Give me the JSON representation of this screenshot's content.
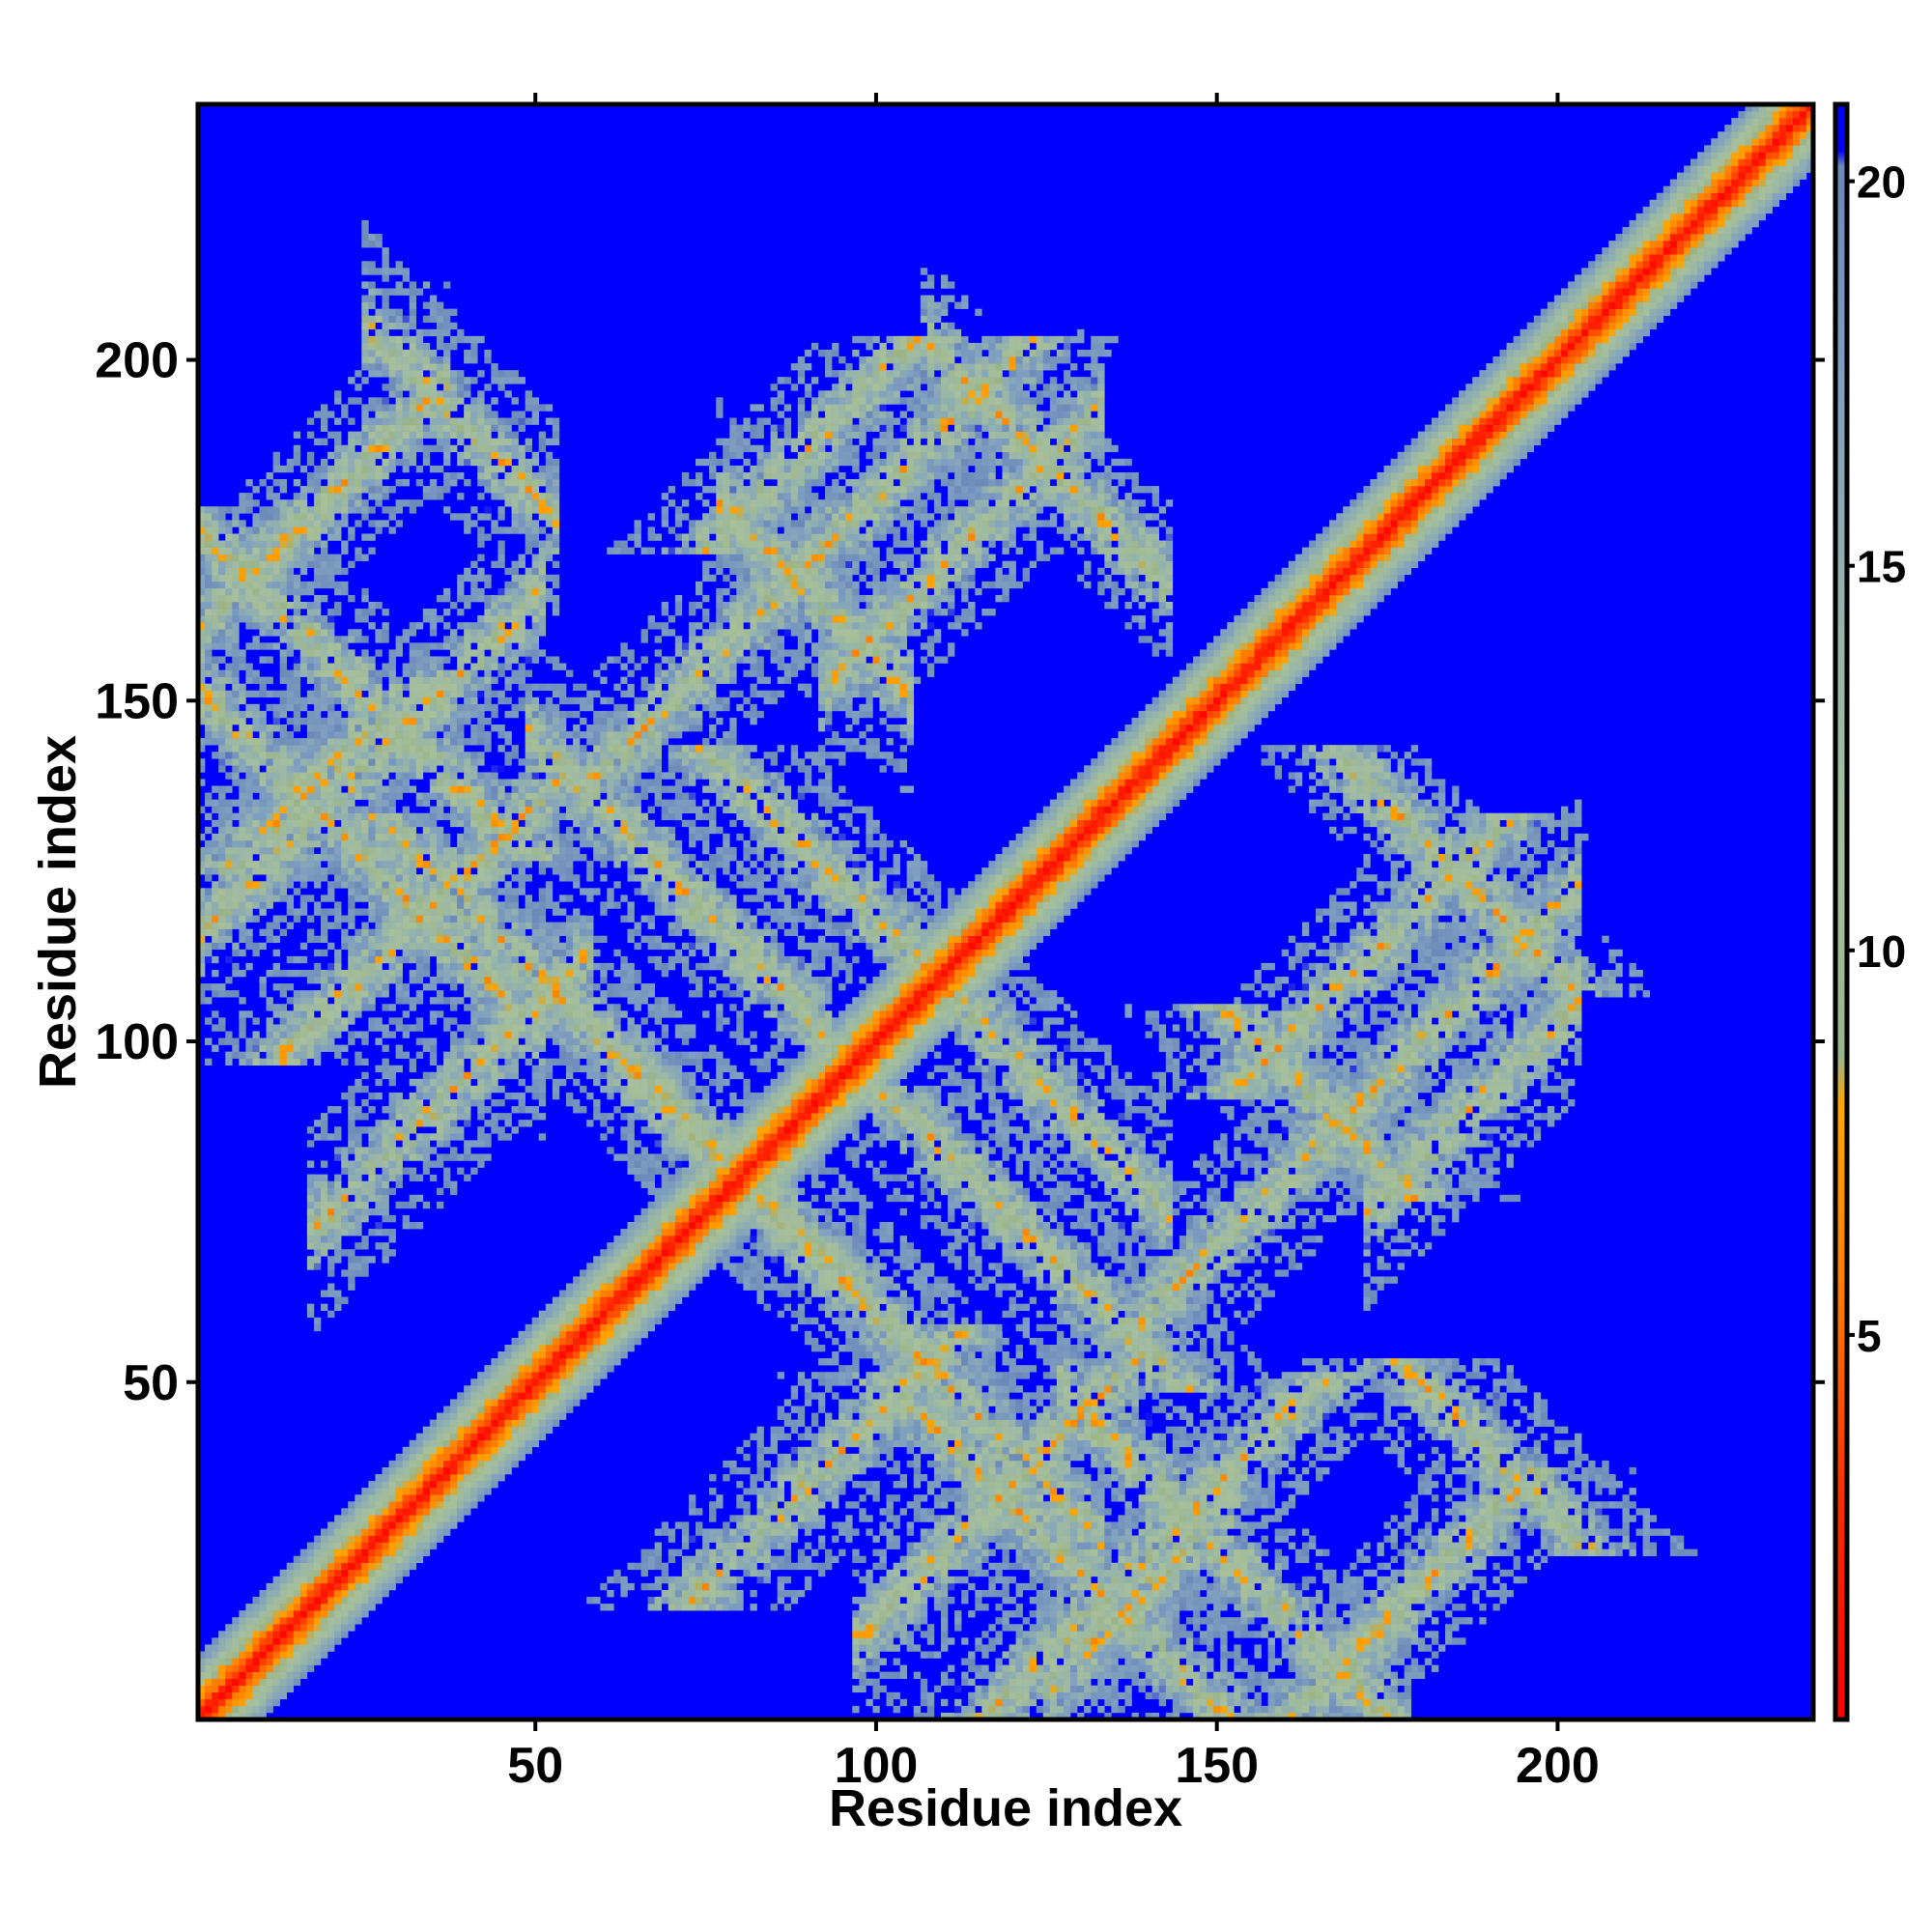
{
  "chart_data": {
    "type": "heatmap",
    "title": "",
    "xlabel": "Residue index",
    "ylabel": "Residue index",
    "n_residues": 237,
    "xlim": [
      1,
      237
    ],
    "ylim": [
      1,
      237
    ],
    "x_ticks": [
      50,
      100,
      150,
      200
    ],
    "y_ticks": [
      50,
      100,
      150,
      200
    ],
    "x_tick_labels": [
      "50",
      "100",
      "150",
      "200"
    ],
    "y_tick_labels": [
      "50",
      "100",
      "150",
      "200"
    ],
    "grid": false,
    "colorbar": {
      "placement": "right",
      "range": [
        0,
        21
      ],
      "ticks": [
        5,
        10,
        15,
        20
      ],
      "tick_labels": [
        "5",
        "10",
        "15",
        "20"
      ],
      "stops": [
        {
          "value": 0,
          "color": "#ff0000"
        },
        {
          "value": 3,
          "color": "#ff3000"
        },
        {
          "value": 5.5,
          "color": "#ff7a00"
        },
        {
          "value": 8,
          "color": "#ffa500"
        },
        {
          "value": 8.6,
          "color": "#9ab48a"
        },
        {
          "value": 11,
          "color": "#a8c09a"
        },
        {
          "value": 14,
          "color": "#98b6a8"
        },
        {
          "value": 17.5,
          "color": "#7f9fc0"
        },
        {
          "value": 20.2,
          "color": "#6a88b8"
        },
        {
          "value": 20.4,
          "color": "#0000ff"
        },
        {
          "value": 21,
          "color": "#0000ff"
        }
      ]
    },
    "background_value": 21,
    "contact_bands": [
      {
        "orientation": "anti-diagonal",
        "sum": 152,
        "i_range": [
          1,
          48
        ],
        "width": 7
      },
      {
        "orientation": "anti-diagonal",
        "sum": 256,
        "i_range": [
          80,
          102
        ],
        "width": 7
      },
      {
        "orientation": "anti-diagonal",
        "sum": 230,
        "i_range": [
          28,
          50
        ],
        "width": 7
      },
      {
        "orientation": "anti-diagonal",
        "sum": 194,
        "i_range": [
          52,
          90
        ],
        "width": 7
      },
      {
        "orientation": "anti-diagonal",
        "sum": 160,
        "i_range": [
          65,
          130
        ],
        "width": 7
      },
      {
        "orientation": "anti-diagonal",
        "sum": 218,
        "i_range": [
          108,
          140
        ],
        "width": 7
      },
      {
        "orientation": "diagonal",
        "diff": 55,
        "i_range": [
          20,
          55
        ],
        "width": 7
      },
      {
        "orientation": "diagonal",
        "diff": 60,
        "i_range": [
          95,
          130
        ],
        "width": 6
      },
      {
        "orientation": "diagonal",
        "diff": 160,
        "i_range": [
          2,
          34
        ],
        "width": 6
      },
      {
        "orientation": "diagonal",
        "diff": 115,
        "i_range": [
          2,
          48
        ],
        "width": 6
      },
      {
        "orientation": "diagonal",
        "diff": -80,
        "i_range": [
          140,
          200
        ],
        "width": 7
      },
      {
        "orientation": "diagonal",
        "diff": -97,
        "i_range": [
          175,
          200
        ],
        "width": 6
      },
      {
        "orientation": "diagonal",
        "diff": -120,
        "i_range": [
          128,
          150
        ],
        "width": 6
      },
      {
        "orientation": "diagonal",
        "diff": -85,
        "i_range": [
          100,
          135
        ],
        "width": 6
      },
      {
        "orientation": "anti-diagonal",
        "sum": 176,
        "i_range": [
          130,
          175
        ],
        "width": 7
      },
      {
        "orientation": "anti-diagonal",
        "sum": 310,
        "i_range": [
          110,
          140
        ],
        "width": 5
      }
    ]
  }
}
